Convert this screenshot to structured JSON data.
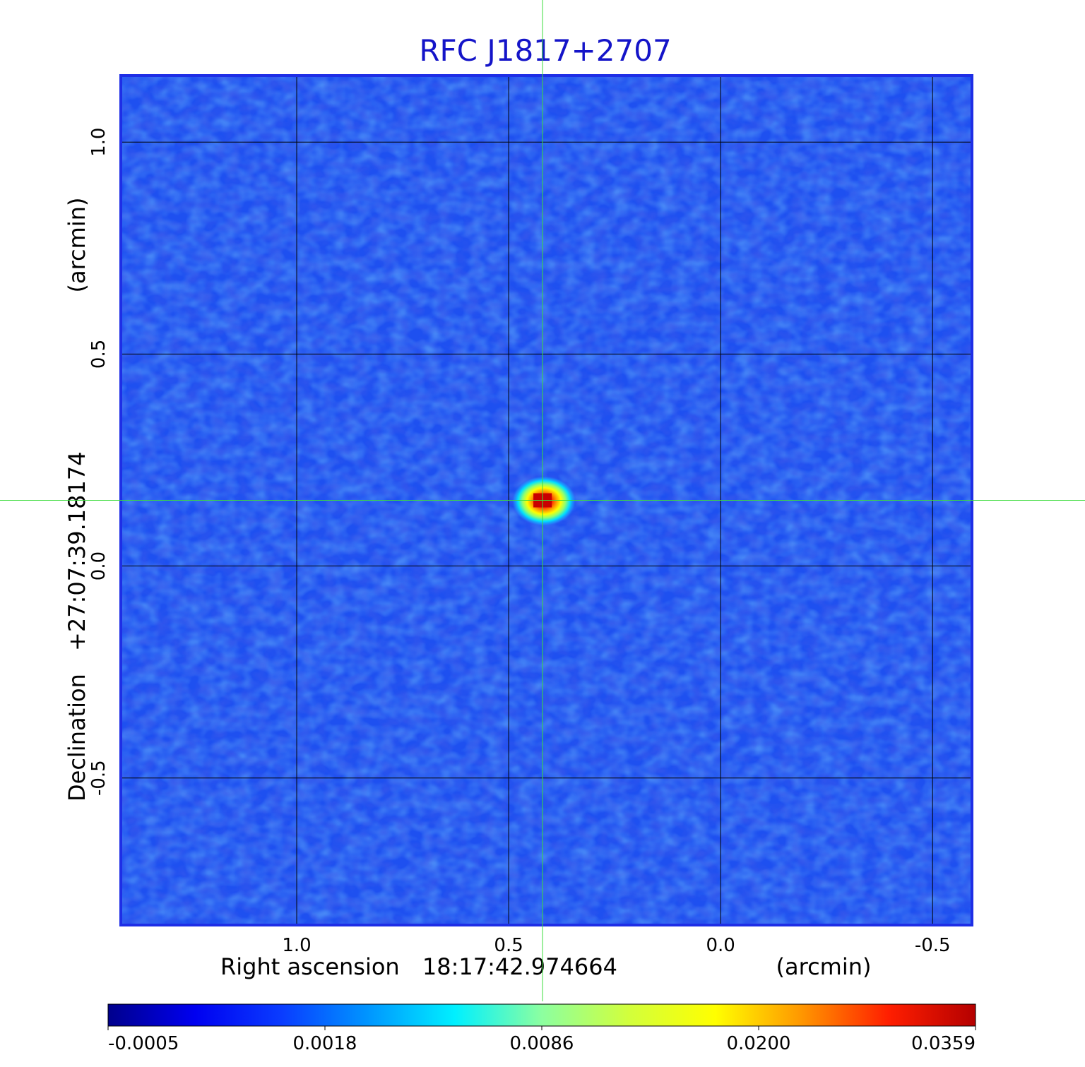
{
  "chart_data": {
    "type": "heatmap",
    "title": "RFC J1817+2707",
    "xlabel": {
      "name": "Right ascension",
      "center": "18:17:42.974664",
      "unit": "(arcmin)"
    },
    "ylabel": {
      "name": "Declination",
      "center": "+27:07:39.18174",
      "unit": "(arcmin)"
    },
    "x_ticks": [
      "1.0",
      "0.5",
      "0.0",
      "-0.5"
    ],
    "x_tick_values": [
      1.0,
      0.5,
      0.0,
      -0.5
    ],
    "y_ticks": [
      "1.0",
      "0.5",
      "0.0",
      "-0.5"
    ],
    "y_tick_values": [
      1.0,
      0.5,
      0.0,
      -0.5
    ],
    "xlim": [
      1.415,
      -0.593
    ],
    "ylim": [
      -0.847,
      1.157
    ],
    "x_direction": "decreasing",
    "grid": true,
    "crosshair": {
      "x": 0.42,
      "y": 0.155
    },
    "source_peak": {
      "x": 0.42,
      "y": 0.155,
      "value": 0.0359
    },
    "colorbar": {
      "ticks": [
        "-0.0005",
        "0.0018",
        "0.0086",
        "0.0200",
        "0.0359"
      ],
      "min": -0.0005,
      "max": 0.0359,
      "scale": "nonlinear",
      "colormap": "jet"
    },
    "colors": {
      "title": "#1414c8",
      "frame": "#1e2ee6",
      "crosshair": "#3cdc3c",
      "grid": "#000000",
      "background_field": "#1e50f0"
    }
  }
}
